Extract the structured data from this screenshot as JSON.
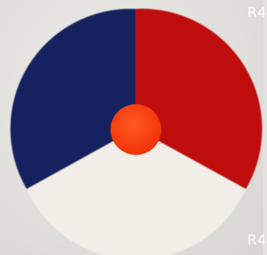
{
  "labels": {
    "top": "R4",
    "bottom": "R4"
  },
  "roundel": {
    "segments": [
      {
        "name": "blue",
        "color": "#142060"
      },
      {
        "name": "red",
        "color": "#bf0a10"
      },
      {
        "name": "white",
        "color": "#f2ede6"
      }
    ],
    "center_color": "#ff3b0e"
  }
}
